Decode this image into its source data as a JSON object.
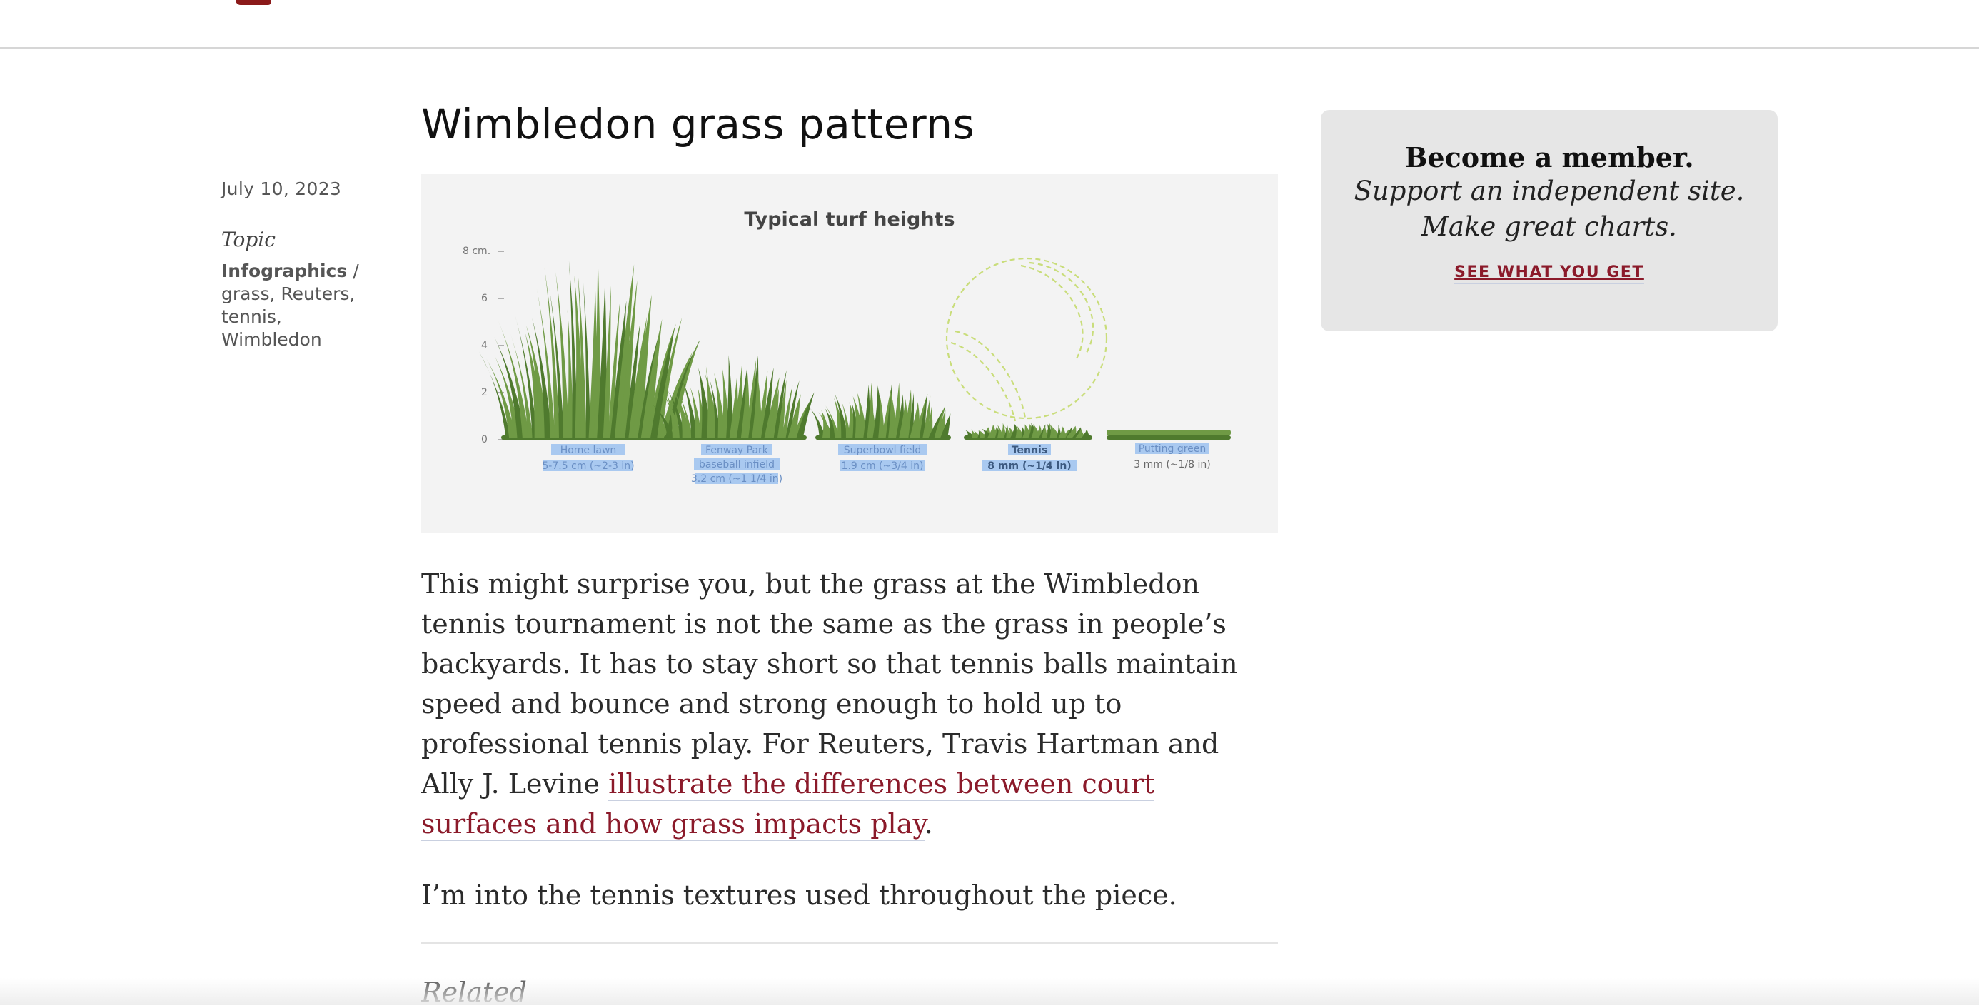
{
  "header": {
    "logo": "brand-logo"
  },
  "meta": {
    "date": "July 10, 2023",
    "topic_label": "Topic",
    "topic_primary": "Infographics",
    "separator": "/",
    "tags": [
      "grass,",
      "Reuters,",
      "tennis,",
      "Wimbledon"
    ]
  },
  "post": {
    "title": "Wimbledon grass patterns",
    "paragraph1_text": "This might surprise you, but the grass at the Wimbledon tennis tournament is not the same as the grass in people’s backyards. It has to stay short so that tennis balls maintain speed and bounce and strong enough to hold up to professional tennis play. For Reuters, Travis Hartman and Ally J. Levine ",
    "paragraph1_link": "illustrate the differences between court surfaces and how grass impacts play",
    "paragraph1_end": ".",
    "paragraph2": "I’m into the tennis textures used throughout the piece.",
    "related_heading": "Related"
  },
  "sidebar": {
    "line1": "Become a member.",
    "line2": "Support an independent site.",
    "line3": "Make great charts.",
    "cta": "SEE WHAT YOU GET"
  },
  "figure": {
    "title": "Typical turf heights",
    "y_ticks": [
      "8 cm.",
      "6",
      "4",
      "2",
      "0"
    ],
    "items": [
      {
        "name": "Home lawn",
        "height": "5-7.5 cm (~2-3 in)"
      },
      {
        "name": "Fenway Park baseball infield",
        "name_l1": "Fenway Park",
        "name_l2": "baseball infield",
        "height": "3.2 cm (~1 1/4 in)"
      },
      {
        "name": "Superbowl field",
        "height": "1.9 cm (~3/4 in)"
      },
      {
        "name": "Tennis",
        "height": "8 mm (~1/4 in)"
      },
      {
        "name": "Putting green",
        "height": "3 mm (~1/8 in)"
      }
    ],
    "colors": {
      "grass": "#6f9a45",
      "grass_dark": "#4f7a2e",
      "highlight": "#a9c9f0",
      "ball": "#c9dd7a"
    }
  }
}
